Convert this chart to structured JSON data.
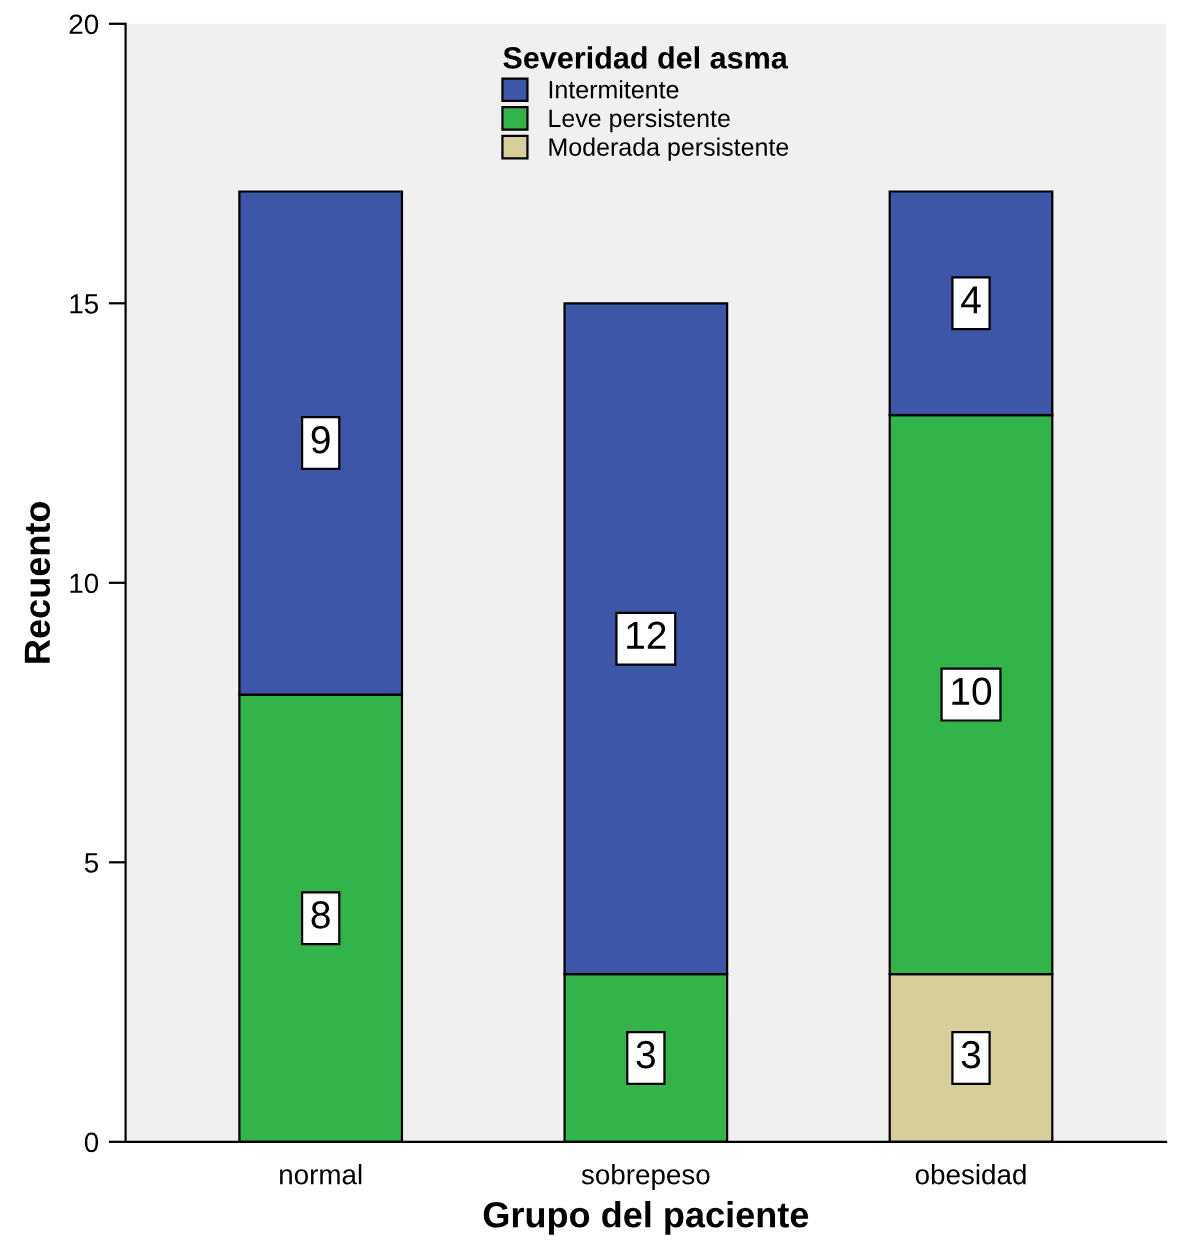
{
  "chart_data": {
    "type": "bar",
    "stacked": true,
    "xlabel": "Grupo del paciente",
    "ylabel": "Recuento",
    "legend_title": "Severidad del asma",
    "categories": [
      "normal",
      "sobrepeso",
      "obesidad"
    ],
    "series": [
      {
        "name": "Moderada persistente",
        "color": "#d6cf9b",
        "values": [
          null,
          null,
          3
        ]
      },
      {
        "name": "Leve persistente",
        "color": "#33b44a",
        "values": [
          8,
          3,
          10
        ]
      },
      {
        "name": "Intermitente",
        "color": "#3d56a8",
        "values": [
          9,
          12,
          4
        ]
      }
    ],
    "ylim": [
      0,
      20
    ],
    "yticks": [
      0,
      5,
      10,
      15,
      20
    ],
    "data_labels": true,
    "legend": "top"
  }
}
